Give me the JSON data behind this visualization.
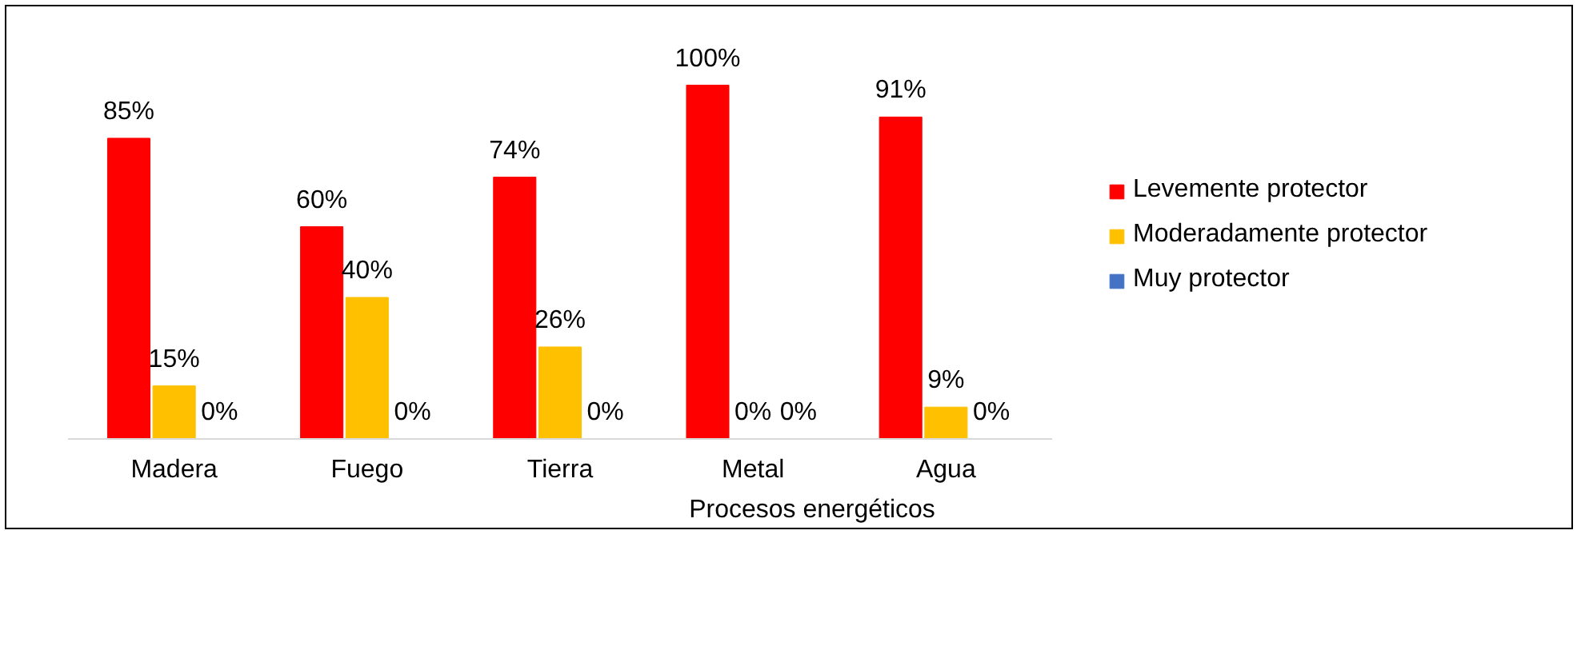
{
  "chart_data": {
    "type": "bar",
    "xlabel": "Procesos energéticos",
    "categories": [
      "Madera",
      "Fuego",
      "Tierra",
      "Metal",
      "Agua"
    ],
    "series": [
      {
        "name": "Levemente protector",
        "color": "#ff0000",
        "values": [
          85,
          60,
          74,
          100,
          91
        ],
        "value_labels": [
          "85%",
          "60%",
          "74%",
          "100%",
          "91%"
        ]
      },
      {
        "name": "Moderadamente protector",
        "color": "#ffc000",
        "values": [
          15,
          40,
          26,
          0,
          9
        ],
        "value_labels": [
          "15%",
          "40%",
          "26%",
          "0%",
          "9%"
        ]
      },
      {
        "name": "Muy protector",
        "color": "#4472c4",
        "values": [
          0,
          0,
          0,
          0,
          0
        ],
        "value_labels": [
          "0%",
          "0%",
          "0%",
          "0%",
          "0%"
        ]
      }
    ],
    "legend": "right",
    "grid": false
  }
}
